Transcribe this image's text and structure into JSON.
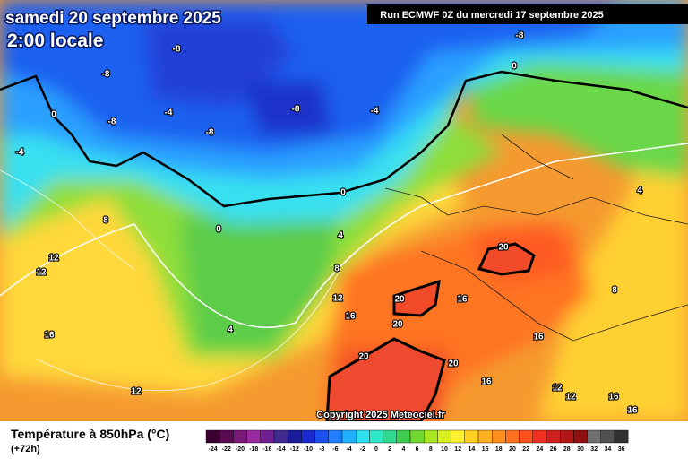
{
  "header": {
    "date": "samedi 20 septembre 2025",
    "time": "2:00 locale",
    "run": "Run ECMWF 0Z du mercredi 17 septembre 2025"
  },
  "copyright": "Copyright 2025 Meteociel.fr",
  "legend": {
    "title": "Température à 850hPa (°C)",
    "lead": "(+72h)",
    "labels": [
      -24,
      -22,
      -20,
      -18,
      -16,
      -14,
      -12,
      -10,
      -8,
      -6,
      -4,
      -2,
      0,
      2,
      4,
      6,
      8,
      10,
      12,
      14,
      16,
      18,
      20,
      22,
      24,
      26,
      28,
      30,
      32,
      34,
      36
    ],
    "colors": [
      "#3a0030",
      "#5a0a50",
      "#7a1a78",
      "#9a2aa0",
      "#702090",
      "#402a90",
      "#1a1a9a",
      "#1a2ad0",
      "#1a50f0",
      "#2080ff",
      "#20b0ff",
      "#30e0f0",
      "#30e8c8",
      "#30d890",
      "#40cc50",
      "#70d830",
      "#a8e820",
      "#d8f020",
      "#fff030",
      "#ffd020",
      "#ffb020",
      "#ff9020",
      "#ff7020",
      "#ff5020",
      "#f03020",
      "#d02020",
      "#b01818",
      "#901010",
      "#707070",
      "#505050",
      "#303030"
    ]
  },
  "map_labels": [
    "-8",
    "-8",
    "-8",
    "-8",
    "-4",
    "-8",
    "-8",
    "-4",
    "-4",
    "0",
    "0",
    "0",
    "0",
    "8",
    "4",
    "4",
    "8",
    "12",
    "12",
    "20",
    "16",
    "20",
    "12",
    "16",
    "8",
    "16",
    "4",
    "20",
    "20",
    "20",
    "16",
    "16",
    "12",
    "12",
    "16",
    "12",
    "16"
  ]
}
